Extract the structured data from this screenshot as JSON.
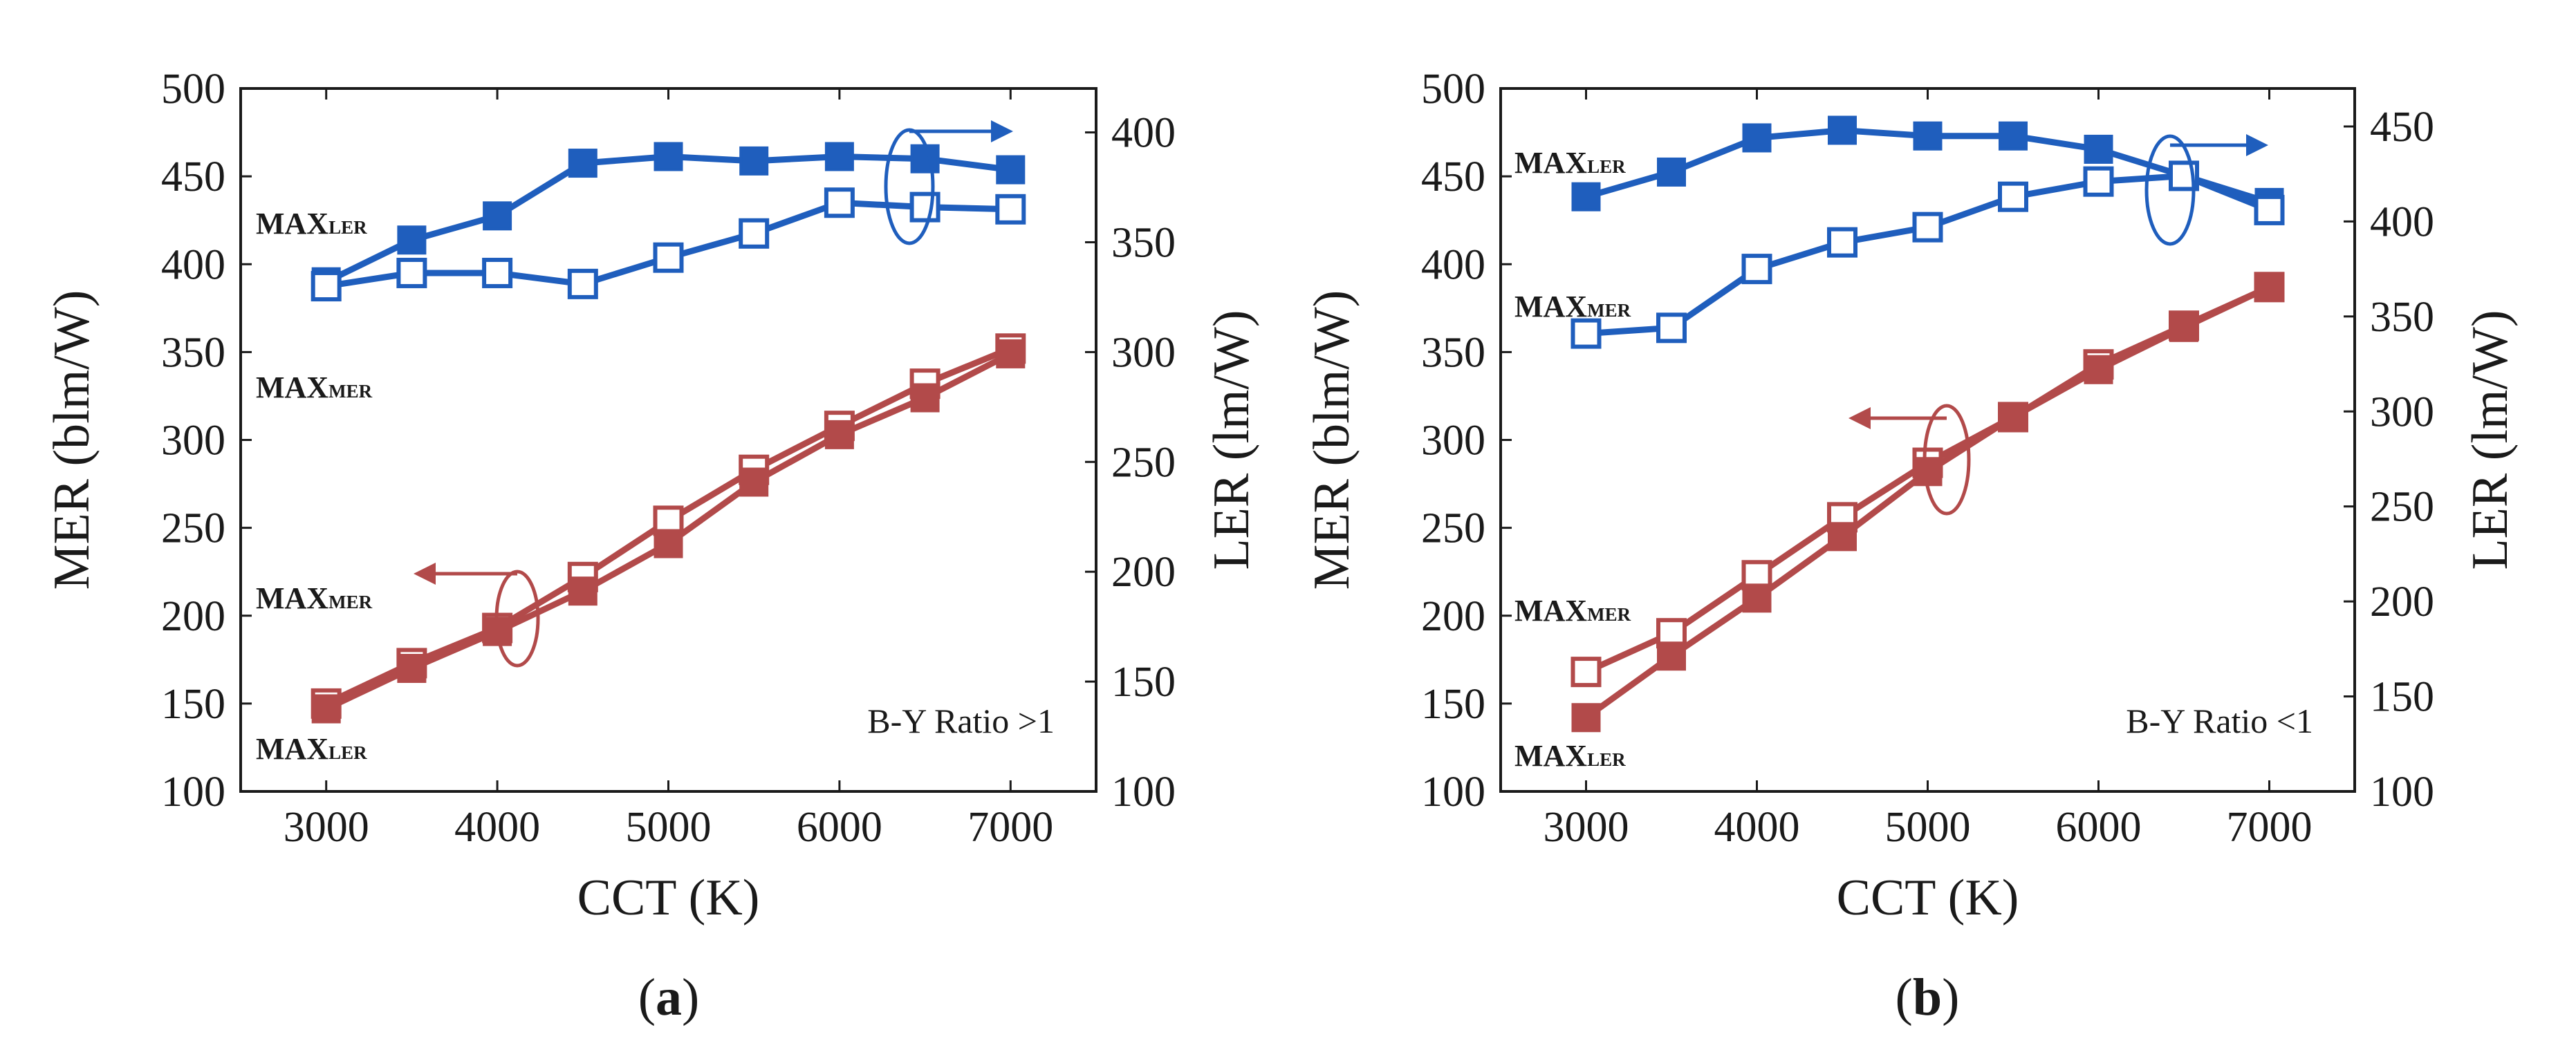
{
  "colors": {
    "blue": "#1f5ebd",
    "red": "#b24a4a",
    "axis": "#1a1a1a"
  },
  "chart_data": [
    {
      "id": "a",
      "type": "line",
      "panel_label": "(a)",
      "panel_label_parts": [
        "(",
        "a",
        ")"
      ],
      "xlabel": "CCT (K)",
      "ylabel_left": "MER (blm/W)",
      "ylabel_right": "LER (lm/W)",
      "xlim": [
        2500,
        7500
      ],
      "ylim_left": [
        100,
        500
      ],
      "ylim_right": [
        100,
        420
      ],
      "xticks": [
        3000,
        4000,
        5000,
        6000,
        7000
      ],
      "yticks_left": [
        100,
        150,
        200,
        250,
        300,
        350,
        400,
        450,
        500
      ],
      "yticks_right": [
        100,
        150,
        200,
        250,
        300,
        350,
        400
      ],
      "annotation": "B-Y Ratio >1",
      "x": [
        3000,
        3500,
        4000,
        4500,
        5000,
        5500,
        6000,
        6500,
        7000
      ],
      "series": [
        {
          "name": "LER (MAX_LER)",
          "axis": "right",
          "color": "blue",
          "marker": "filled-square",
          "values": [
            332,
            351,
            362,
            386,
            389,
            387,
            389,
            388,
            383
          ]
        },
        {
          "name": "LER (MAX_MER)",
          "axis": "right",
          "color": "blue",
          "marker": "open-square",
          "values": [
            330,
            336,
            336,
            331,
            343,
            354,
            368,
            366,
            365
          ]
        },
        {
          "name": "MER (MAX_MER)",
          "axis": "left",
          "color": "red",
          "marker": "open-square",
          "values": [
            150,
            173,
            193,
            222,
            254,
            283,
            308,
            332,
            352
          ]
        },
        {
          "name": "MER (MAX_LER)",
          "axis": "left",
          "color": "red",
          "marker": "filled-square",
          "values": [
            147,
            170,
            191,
            214,
            241,
            276,
            303,
            324,
            349
          ]
        }
      ],
      "labels": [
        {
          "main": "MAX",
          "sub": "LER"
        },
        {
          "main": "MAX",
          "sub": "MER"
        },
        {
          "main": "MAX",
          "sub": "MER"
        },
        {
          "main": "MAX",
          "sub": "LER"
        }
      ]
    },
    {
      "id": "b",
      "type": "line",
      "panel_label": "(b)",
      "panel_label_parts": [
        "(",
        "b",
        ")"
      ],
      "xlabel": "CCT (K)",
      "ylabel_left": "MER (blm/W)",
      "ylabel_right": "LER (lm/W)",
      "xlim": [
        2500,
        7500
      ],
      "ylim_left": [
        100,
        500
      ],
      "ylim_right": [
        100,
        470
      ],
      "xticks": [
        3000,
        4000,
        5000,
        6000,
        7000
      ],
      "yticks_left": [
        100,
        150,
        200,
        250,
        300,
        350,
        400,
        450,
        500
      ],
      "yticks_right": [
        100,
        150,
        200,
        250,
        300,
        350,
        400,
        450
      ],
      "annotation": "B-Y Ratio <1",
      "x": [
        3000,
        3500,
        4000,
        4500,
        5000,
        5500,
        6000,
        6500,
        7000
      ],
      "series": [
        {
          "name": "LER (MAX_LER)",
          "axis": "right",
          "color": "blue",
          "marker": "filled-square",
          "values": [
            413,
            426,
            444,
            448,
            445,
            445,
            438,
            424,
            410
          ]
        },
        {
          "name": "LER (MAX_MER)",
          "axis": "right",
          "color": "blue",
          "marker": "open-square",
          "values": [
            341,
            344,
            375,
            389,
            397,
            413,
            421,
            424,
            406
          ]
        },
        {
          "name": "MER (MAX_MER)",
          "axis": "left",
          "color": "red",
          "marker": "open-square",
          "values": [
            168,
            190,
            223,
            256,
            287,
            313,
            343,
            365,
            387
          ]
        },
        {
          "name": "MER (MAX_LER)",
          "axis": "left",
          "color": "red",
          "marker": "filled-square",
          "values": [
            142,
            177,
            210,
            245,
            282,
            313,
            340,
            364,
            387
          ]
        }
      ],
      "labels": [
        {
          "main": "MAX",
          "sub": "LER"
        },
        {
          "main": "MAX",
          "sub": "MER"
        },
        {
          "main": "MAX",
          "sub": "MER"
        },
        {
          "main": "MAX",
          "sub": "LER"
        }
      ]
    }
  ]
}
